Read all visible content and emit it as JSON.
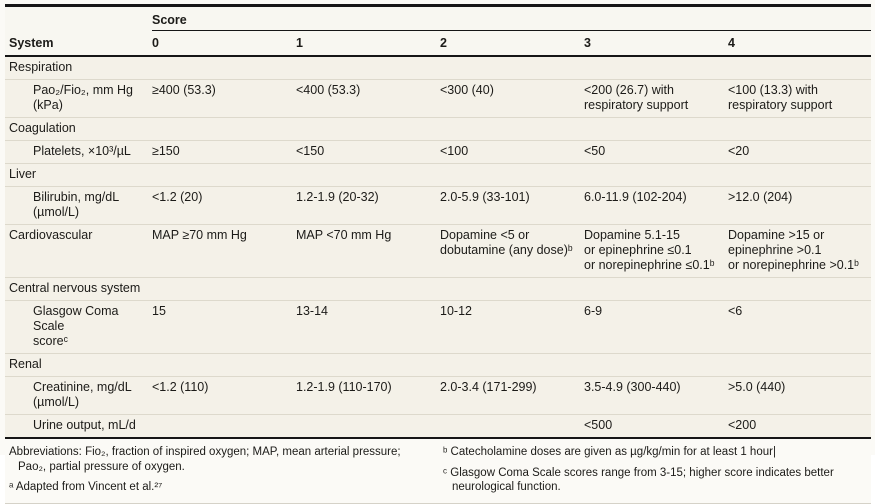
{
  "style": {
    "body_bg": "#f4f1e8",
    "panel_bg": "#f8f7f1",
    "rule_color": "#161616",
    "separator_color": "#ddd9cc",
    "text_color": "#1c1b18"
  },
  "header": {
    "score_label": "Score",
    "system_label": "System",
    "score_columns": [
      "0",
      "1",
      "2",
      "3",
      "4"
    ]
  },
  "rows": [
    {
      "kind": "section",
      "label": "Respiration"
    },
    {
      "kind": "data",
      "indent": true,
      "label": "Pao₂/Fio₂, mm Hg\n(kPa)",
      "cells": [
        "≥400 (53.3)",
        "<400 (53.3)",
        "<300 (40)",
        "<200 (26.7) with\nrespiratory support",
        "<100 (13.3) with\nrespiratory support"
      ]
    },
    {
      "kind": "section",
      "label": "Coagulation"
    },
    {
      "kind": "data",
      "indent": true,
      "label": "Platelets, ×10³/µL",
      "cells": [
        "≥150",
        "<150",
        "<100",
        "<50",
        "<20"
      ]
    },
    {
      "kind": "section",
      "label": "Liver"
    },
    {
      "kind": "data",
      "indent": true,
      "label": "Bilirubin, mg/dL\n(µmol/L)",
      "cells": [
        "<1.2 (20)",
        "1.2-1.9 (20-32)",
        "2.0-5.9 (33-101)",
        "6.0-11.9 (102-204)",
        ">12.0 (204)"
      ]
    },
    {
      "kind": "data",
      "indent": false,
      "label": "Cardiovascular",
      "cells": [
        "MAP ≥70 mm Hg",
        "MAP <70 mm Hg",
        "Dopamine <5 or\ndobutamine (any dose)ᵇ",
        "Dopamine 5.1-15\nor epinephrine ≤0.1\nor norepinephrine ≤0.1ᵇ",
        "Dopamine >15 or\nepinephrine >0.1\nor norepinephrine >0.1ᵇ"
      ]
    },
    {
      "kind": "section",
      "label": "Central nervous system"
    },
    {
      "kind": "data",
      "indent": true,
      "label": "Glasgow Coma Scale\nscoreᶜ",
      "cells": [
        "15",
        "13-14",
        "10-12",
        "6-9",
        "<6"
      ]
    },
    {
      "kind": "section",
      "label": "Renal"
    },
    {
      "kind": "data",
      "indent": true,
      "label": "Creatinine, mg/dL\n(µmol/L)",
      "cells": [
        "<1.2 (110)",
        "1.2-1.9 (110-170)",
        "2.0-3.4 (171-299)",
        "3.5-4.9 (300-440)",
        ">5.0 (440)"
      ]
    },
    {
      "kind": "data",
      "indent": true,
      "label": "Urine output, mL/d",
      "cells": [
        "",
        "",
        "",
        "<500",
        "<200"
      ]
    }
  ],
  "footnotes": {
    "abbreviations": "Abbreviations: Fio₂, fraction of inspired oxygen; MAP, mean arterial pressure;\nPao₂, partial pressure of oxygen.",
    "a": "ᵃ Adapted from Vincent et al.²⁷",
    "b": "ᵇ Catecholamine doses are given as µg/kg/min for at least 1 hour|",
    "c": "ᶜ Glasgow Coma Scale scores range from 3-15; higher score indicates better\nneurological function."
  }
}
